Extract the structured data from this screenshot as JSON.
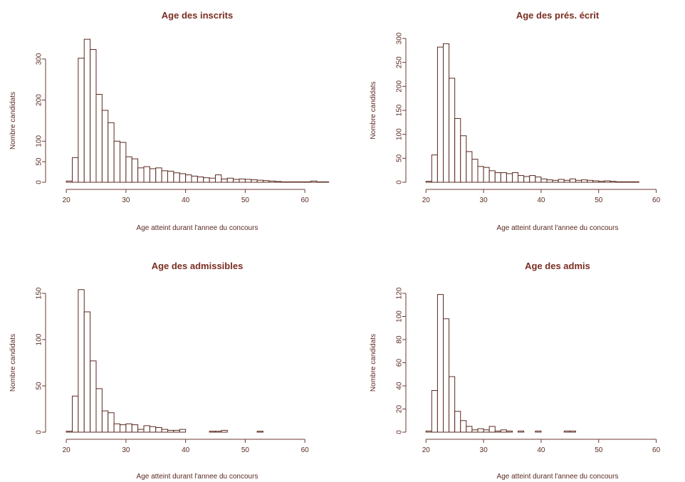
{
  "colors": {
    "title": "#7a2d22",
    "text": "#5a2a20",
    "bar_stroke": "#5a2a20",
    "bar_fill": "#ffffff"
  },
  "chart_data": [
    {
      "type": "bar",
      "title": "Age des inscrits",
      "xlabel": "Age atteint durant l'annee du concours",
      "ylabel": "Nombre candidats",
      "xlim": [
        17,
        65
      ],
      "ylim": [
        0,
        350
      ],
      "xticks": [
        20,
        30,
        40,
        50,
        60
      ],
      "yticks": [
        0,
        50,
        100,
        200,
        300
      ],
      "bin_start": 20,
      "bin_width": 1,
      "values": [
        3,
        60,
        302,
        348,
        323,
        214,
        175,
        145,
        100,
        97,
        62,
        57,
        35,
        38,
        33,
        35,
        28,
        27,
        23,
        21,
        18,
        15,
        13,
        11,
        10,
        18,
        8,
        10,
        7,
        8,
        7,
        6,
        5,
        4,
        3,
        2,
        1,
        1,
        1,
        1,
        1,
        3,
        1,
        1,
        0
      ]
    },
    {
      "type": "bar",
      "title": "Age des prés. écrit",
      "xlabel": "Age atteint durant l'annee du concours",
      "ylabel": "Nombre candidats",
      "xlim": [
        17,
        65
      ],
      "ylim": [
        0,
        300
      ],
      "xticks": [
        20,
        30,
        40,
        50,
        60
      ],
      "yticks": [
        0,
        50,
        100,
        150,
        200,
        250,
        300
      ],
      "bin_start": 20,
      "bin_width": 1,
      "values": [
        2,
        57,
        282,
        289,
        217,
        133,
        97,
        64,
        48,
        33,
        31,
        24,
        20,
        20,
        18,
        20,
        14,
        12,
        14,
        11,
        7,
        5,
        4,
        6,
        4,
        7,
        4,
        5,
        4,
        3,
        2,
        3,
        2,
        1,
        1,
        1,
        1,
        0,
        0,
        0,
        0,
        0,
        0,
        0,
        0
      ]
    },
    {
      "type": "bar",
      "title": "Age des admissibles",
      "xlabel": "Age atteint durant l'annee du concours",
      "ylabel": "Nombre candidats",
      "xlim": [
        17,
        65
      ],
      "ylim": [
        0,
        150
      ],
      "xticks": [
        20,
        30,
        40,
        50,
        60
      ],
      "yticks": [
        0,
        50,
        100,
        150
      ],
      "bin_start": 20,
      "bin_width": 1,
      "values": [
        1,
        39,
        154,
        130,
        77,
        47,
        23,
        21,
        9,
        8,
        9,
        8,
        3,
        7,
        6,
        5,
        3,
        2,
        2,
        3,
        0,
        0,
        0,
        0,
        1,
        1,
        2,
        0,
        0,
        0,
        0,
        0,
        1,
        0,
        0,
        0,
        0,
        0,
        0,
        0,
        0,
        0,
        0,
        0,
        0
      ]
    },
    {
      "type": "bar",
      "title": "Age des admis",
      "xlabel": "Age atteint durant l'annee du concours",
      "ylabel": "Nombre candidats",
      "xlim": [
        17,
        65
      ],
      "ylim": [
        0,
        120
      ],
      "xticks": [
        20,
        30,
        40,
        50,
        60
      ],
      "yticks": [
        0,
        20,
        40,
        60,
        80,
        100,
        120
      ],
      "bin_start": 20,
      "bin_width": 1,
      "values": [
        1,
        36,
        119,
        98,
        48,
        18,
        10,
        5,
        2,
        3,
        2,
        5,
        1,
        2,
        1,
        0,
        1,
        0,
        0,
        1,
        0,
        0,
        0,
        0,
        1,
        1,
        0,
        0,
        0,
        0,
        0,
        0,
        0,
        0,
        0,
        0,
        0,
        0,
        0,
        0,
        0,
        0,
        0,
        0,
        0
      ]
    }
  ]
}
